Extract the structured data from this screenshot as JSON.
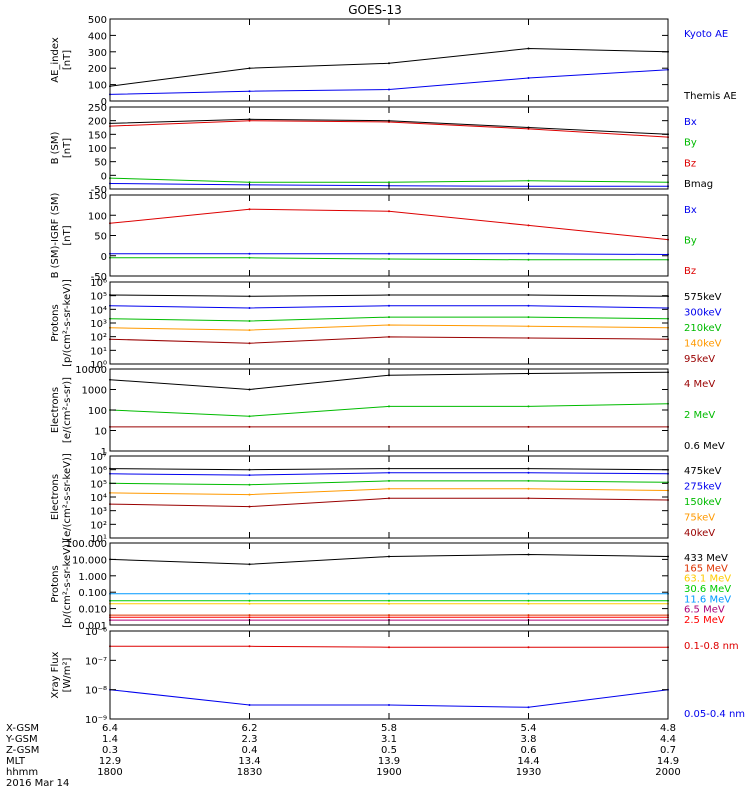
{
  "title": "GOES-13",
  "x_axis": {
    "rows": [
      {
        "label": "X-GSM",
        "values": [
          "6.4",
          "6.2",
          "5.8",
          "5.4",
          "4.8"
        ]
      },
      {
        "label": "Y-GSM",
        "values": [
          "1.4",
          "2.3",
          "3.1",
          "3.8",
          "4.4"
        ]
      },
      {
        "label": "Z-GSM",
        "values": [
          "0.3",
          "0.4",
          "0.5",
          "0.6",
          "0.7"
        ]
      },
      {
        "label": "MLT",
        "values": [
          "12.9",
          "13.4",
          "13.9",
          "14.4",
          "14.9"
        ]
      },
      {
        "label": "hhmm",
        "values": [
          "1800",
          "1830",
          "1900",
          "1930",
          "2000"
        ]
      }
    ],
    "date": "2016 Mar 14"
  },
  "chart_data": [
    {
      "type": "line",
      "ylabel": [
        "AE_index",
        "[nT]"
      ],
      "scale": "linear",
      "ylim": [
        0,
        500
      ],
      "yticks": [
        "500",
        "400",
        "300",
        "200",
        "100",
        "0"
      ],
      "x": [
        "18:00",
        "18:30",
        "19:00",
        "19:30",
        "20:00"
      ],
      "series": [
        {
          "name": "Kyoto AE",
          "color": "#0000ee",
          "values": [
            40,
            60,
            70,
            140,
            190
          ]
        },
        {
          "name": "Themis AE",
          "color": "#000000",
          "values": [
            90,
            200,
            230,
            320,
            300
          ]
        }
      ]
    },
    {
      "type": "line",
      "ylabel": [
        "B (SM)",
        "[nT]"
      ],
      "scale": "linear",
      "ylim": [
        -50,
        250
      ],
      "yticks": [
        "250",
        "200",
        "150",
        "100",
        "50",
        "0",
        "-50"
      ],
      "x": [
        "18:00",
        "18:30",
        "19:00",
        "19:30",
        "20:00"
      ],
      "series": [
        {
          "name": "Bx",
          "color": "#0000ee",
          "values": [
            -30,
            -35,
            -38,
            -40,
            -40
          ]
        },
        {
          "name": "By",
          "color": "#00bb00",
          "values": [
            -10,
            -25,
            -25,
            -20,
            -25
          ]
        },
        {
          "name": "Bz",
          "color": "#dd0000",
          "values": [
            180,
            200,
            195,
            170,
            140
          ]
        },
        {
          "name": "Bmag",
          "color": "#000000",
          "values": [
            190,
            205,
            200,
            175,
            150
          ]
        }
      ]
    },
    {
      "type": "line",
      "ylabel": [
        "B (SM)-IGRF (SM)",
        "[nT]"
      ],
      "scale": "linear",
      "ylim": [
        -50,
        150
      ],
      "yticks": [
        "150",
        "100",
        "50",
        "0",
        "-50"
      ],
      "x": [
        "18:00",
        "18:30",
        "19:00",
        "19:30",
        "20:00"
      ],
      "series": [
        {
          "name": "Bx",
          "color": "#0000ee",
          "values": [
            5,
            5,
            5,
            5,
            3
          ]
        },
        {
          "name": "By",
          "color": "#00bb00",
          "values": [
            -5,
            -5,
            -8,
            -10,
            -10
          ]
        },
        {
          "name": "Bz",
          "color": "#dd0000",
          "values": [
            80,
            115,
            110,
            75,
            40
          ]
        }
      ]
    },
    {
      "type": "line",
      "ylabel": [
        "Protons",
        "[p/(cm²-s-sr-keV)]"
      ],
      "scale": "log",
      "ylim": [
        0.5,
        1000000
      ],
      "yticks": [
        "10⁶",
        "10⁵",
        "10⁴",
        "10³",
        "10²",
        "10¹",
        "10⁰"
      ],
      "x": [
        "18:00",
        "18:30",
        "19:00",
        "19:30",
        "20:00"
      ],
      "series": [
        {
          "name": "575keV",
          "color": "#000000",
          "values": [
            100000,
            80000,
            100000,
            100000,
            80000
          ]
        },
        {
          "name": "300keV",
          "color": "#0000ee",
          "values": [
            15000,
            10000,
            15000,
            15000,
            10000
          ]
        },
        {
          "name": "210keV",
          "color": "#00bb00",
          "values": [
            1500,
            1000,
            2000,
            2000,
            1500
          ]
        },
        {
          "name": "140keV",
          "color": "#ff9900",
          "values": [
            300,
            200,
            500,
            400,
            300
          ]
        },
        {
          "name": "95keV",
          "color": "#990000",
          "values": [
            40,
            20,
            60,
            50,
            40
          ]
        }
      ]
    },
    {
      "type": "line",
      "ylabel": [
        "Electrons",
        "[e/(cm²-s-sr)]"
      ],
      "scale": "log",
      "ylim": [
        1,
        10000
      ],
      "yticks": [
        "10000",
        "1000",
        "100",
        "10",
        "1"
      ],
      "x": [
        "18:00",
        "18:30",
        "19:00",
        "19:30",
        "20:00"
      ],
      "series": [
        {
          "name": "4 MeV",
          "color": "#990000",
          "values": [
            15,
            15,
            15,
            15,
            15
          ]
        },
        {
          "name": "2 MeV",
          "color": "#00bb00",
          "values": [
            100,
            50,
            150,
            150,
            200
          ]
        },
        {
          "name": "0.6 MeV",
          "color": "#000000",
          "values": [
            3000,
            1000,
            5000,
            6000,
            7000
          ]
        }
      ]
    },
    {
      "type": "line",
      "ylabel": [
        "Electrons",
        "[e/(cm²-s-sr-keV)]"
      ],
      "scale": "log",
      "ylim": [
        10,
        10000000
      ],
      "yticks": [
        "10⁷",
        "10⁶",
        "10⁵",
        "10⁴",
        "10³",
        "10²",
        "10¹"
      ],
      "x": [
        "18:00",
        "18:30",
        "19:00",
        "19:30",
        "20:00"
      ],
      "series": [
        {
          "name": "475keV",
          "color": "#000000",
          "values": [
            1200000,
            1000000,
            1200000,
            1200000,
            1000000
          ]
        },
        {
          "name": "275keV",
          "color": "#0000ee",
          "values": [
            500000,
            400000,
            600000,
            600000,
            500000
          ]
        },
        {
          "name": "150keV",
          "color": "#00bb00",
          "values": [
            100000,
            80000,
            150000,
            150000,
            120000
          ]
        },
        {
          "name": "75keV",
          "color": "#ff9900",
          "values": [
            20000,
            15000,
            40000,
            40000,
            30000
          ]
        },
        {
          "name": "40keV",
          "color": "#990000",
          "values": [
            3000,
            2000,
            8000,
            8000,
            6000
          ]
        }
      ]
    },
    {
      "type": "line",
      "ylabel": [
        "Protons",
        "[p/(cm²-s-sr-keV)]"
      ],
      "scale": "log",
      "ylim": [
        0.001,
        100
      ],
      "yticks": [
        "100.000",
        "10.000",
        "1.000",
        "0.100",
        "0.010",
        "0.001"
      ],
      "x": [
        "18:00",
        "18:30",
        "19:00",
        "19:30",
        "20:00"
      ],
      "series": [
        {
          "name": "433 MeV",
          "color": "#000000",
          "values": [
            10,
            5,
            15,
            20,
            15
          ]
        },
        {
          "name": "165 MeV",
          "color": "#dd3300",
          "values": [
            0.004,
            0.004,
            0.004,
            0.004,
            0.004
          ]
        },
        {
          "name": "63.1 MeV",
          "color": "#ffcc00",
          "values": [
            0.02,
            0.02,
            0.02,
            0.02,
            0.02
          ]
        },
        {
          "name": "30.6 MeV",
          "color": "#00cc00",
          "values": [
            0.03,
            0.03,
            0.03,
            0.03,
            0.03
          ]
        },
        {
          "name": "11.6 MeV",
          "color": "#0099ff",
          "values": [
            0.08,
            0.08,
            0.08,
            0.08,
            0.08
          ]
        },
        {
          "name": "6.5 MeV",
          "color": "#aa0077",
          "values": [
            0.002,
            0.002,
            0.002,
            0.002,
            0.002
          ]
        },
        {
          "name": "2.5 MeV",
          "color": "#ff0000",
          "values": [
            0.003,
            0.003,
            0.003,
            0.003,
            0.003
          ]
        }
      ]
    },
    {
      "type": "line",
      "ylabel": [
        "Xray Flux",
        "[W/m²]"
      ],
      "scale": "log",
      "ylim": [
        1e-09,
        1e-06
      ],
      "yticks": [
        "10⁻⁶",
        "10⁻⁷",
        "10⁻⁸",
        "10⁻⁹"
      ],
      "x": [
        "18:00",
        "18:30",
        "19:00",
        "19:30",
        "20:00"
      ],
      "series": [
        {
          "name": "0.1-0.8 nm",
          "color": "#dd0000",
          "values": [
            3e-07,
            3e-07,
            2.8e-07,
            2.8e-07,
            2.8e-07
          ]
        },
        {
          "name": "0.05-0.4 nm",
          "color": "#0000ee",
          "values": [
            1e-08,
            3e-09,
            3e-09,
            2.5e-09,
            1e-08
          ]
        }
      ]
    }
  ]
}
